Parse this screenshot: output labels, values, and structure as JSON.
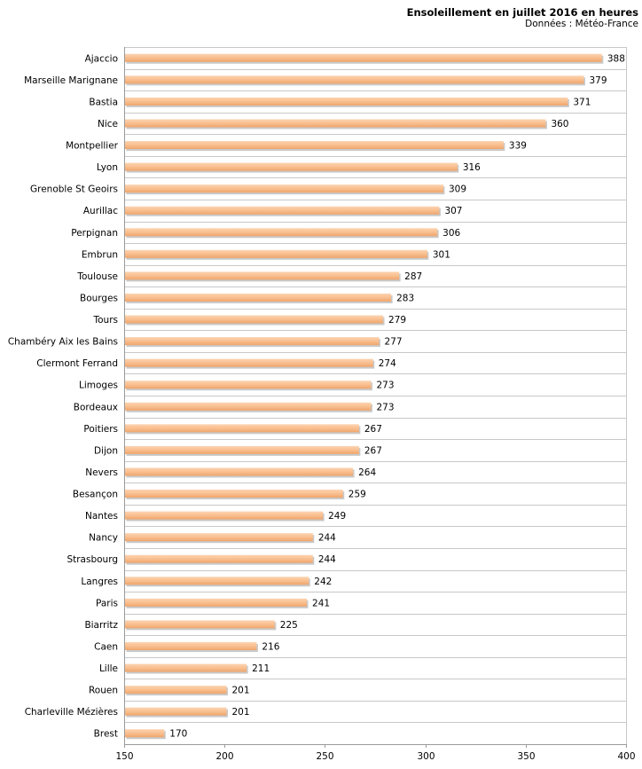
{
  "chart_data": {
    "type": "bar",
    "orientation": "horizontal",
    "title": "Ensoleillement en juillet 2016 en heures",
    "subtitle": "Données : Météo-France",
    "xlim": [
      150,
      400
    ],
    "xticks": [
      150,
      200,
      250,
      300,
      350,
      400
    ],
    "grid": true,
    "bar_color": "#f9bf8f",
    "categories": [
      "Ajaccio",
      "Marseille Marignane",
      "Bastia",
      "Nice",
      "Montpellier",
      "Lyon",
      "Grenoble St Geoirs",
      "Aurillac",
      "Perpignan",
      "Embrun",
      "Toulouse",
      "Bourges",
      "Tours",
      "Chambéry Aix les Bains",
      "Clermont Ferrand",
      "Limoges",
      "Bordeaux",
      "Poitiers",
      "Dijon",
      "Nevers",
      "Besançon",
      "Nantes",
      "Nancy",
      "Strasbourg",
      "Langres",
      "Paris",
      "Biarritz",
      "Caen",
      "Lille",
      "Rouen",
      "Charleville Mézières",
      "Brest"
    ],
    "values": [
      388,
      379,
      371,
      360,
      339,
      316,
      309,
      307,
      306,
      301,
      287,
      283,
      279,
      277,
      274,
      273,
      273,
      267,
      267,
      264,
      259,
      249,
      244,
      244,
      242,
      241,
      225,
      216,
      211,
      201,
      201,
      170
    ]
  }
}
